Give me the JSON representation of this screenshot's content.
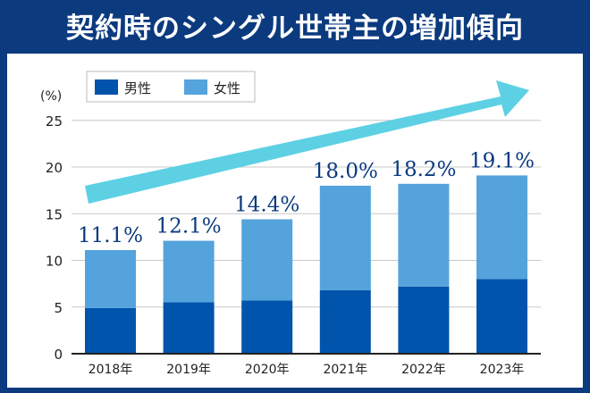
{
  "title": "契約時のシングル世帯主の増加傾向",
  "chart_data": {
    "type": "bar",
    "stacked": true,
    "title": "契約時のシングル世帯主の増加傾向",
    "ylabel": "(%)",
    "ylim": [
      0,
      25
    ],
    "yticks": [
      0,
      5,
      10,
      15,
      20,
      25
    ],
    "grid": true,
    "legend_position": "top-left",
    "categories": [
      "2018年",
      "2019年",
      "2020年",
      "2021年",
      "2022年",
      "2023年"
    ],
    "series": [
      {
        "name": "男性",
        "color": "#0054ab",
        "values": [
          4.9,
          5.5,
          5.7,
          6.8,
          7.2,
          8.0
        ]
      },
      {
        "name": "女性",
        "color": "#55a3dd",
        "values": [
          6.2,
          6.6,
          8.7,
          11.2,
          11.0,
          11.1
        ]
      }
    ],
    "totals": [
      11.1,
      12.1,
      14.4,
      18.0,
      18.2,
      19.1
    ],
    "total_labels": [
      "11.1%",
      "12.1%",
      "14.4%",
      "18.0%",
      "18.2%",
      "19.1%"
    ],
    "annotation": "rising-trend-arrow",
    "arrow_color": "#5dd0e4"
  }
}
